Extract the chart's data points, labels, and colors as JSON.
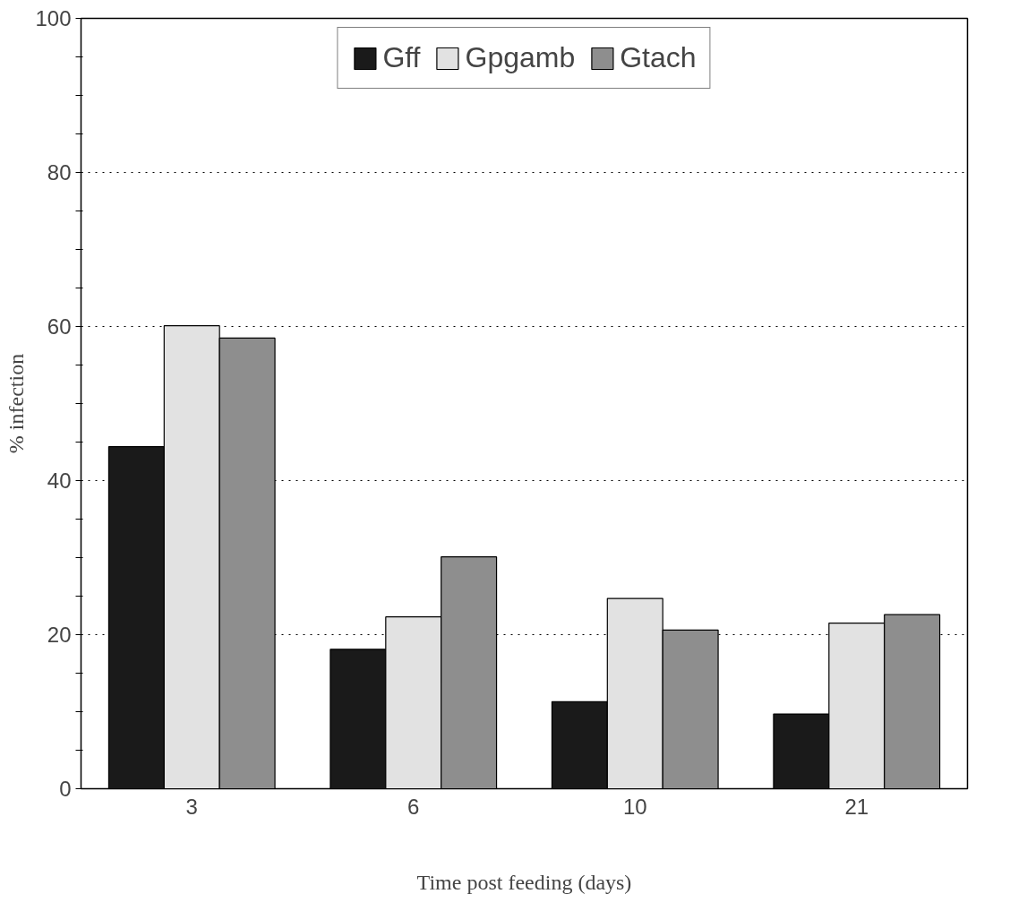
{
  "chart_data": {
    "type": "bar",
    "xlabel": "Time post feeding (days)",
    "ylabel": "% infection",
    "categories": [
      "3",
      "6",
      "10",
      "21"
    ],
    "series": [
      {
        "name": "Gff",
        "color": "#1a1a1a",
        "values": [
          44.4,
          18.1,
          11.3,
          9.7
        ]
      },
      {
        "name": "Gpgamb",
        "color": "#e2e2e2",
        "values": [
          60.1,
          22.3,
          24.7,
          21.5
        ]
      },
      {
        "name": "Gtach",
        "color": "#8e8e8e",
        "values": [
          58.5,
          30.1,
          20.6,
          22.6
        ]
      }
    ],
    "ylim": [
      0,
      100
    ],
    "yticks": [
      0,
      {
        "value": 5,
        "label": null
      },
      {
        "value": 10,
        "label": null
      },
      {
        "value": 15,
        "label": null
      },
      20,
      {
        "value": 25,
        "label": null
      },
      {
        "value": 30,
        "label": null
      },
      {
        "value": 35,
        "label": null
      },
      40,
      {
        "value": 45,
        "label": null
      },
      {
        "value": 50,
        "label": null
      },
      {
        "value": 55,
        "label": null
      },
      60,
      {
        "value": 65,
        "label": null
      },
      {
        "value": 70,
        "label": null
      },
      {
        "value": 75,
        "label": null
      },
      80,
      {
        "value": 85,
        "label": null
      },
      {
        "value": 90,
        "label": null
      },
      {
        "value": 95,
        "label": null
      },
      100
    ],
    "grid": "y",
    "legend": "top"
  }
}
